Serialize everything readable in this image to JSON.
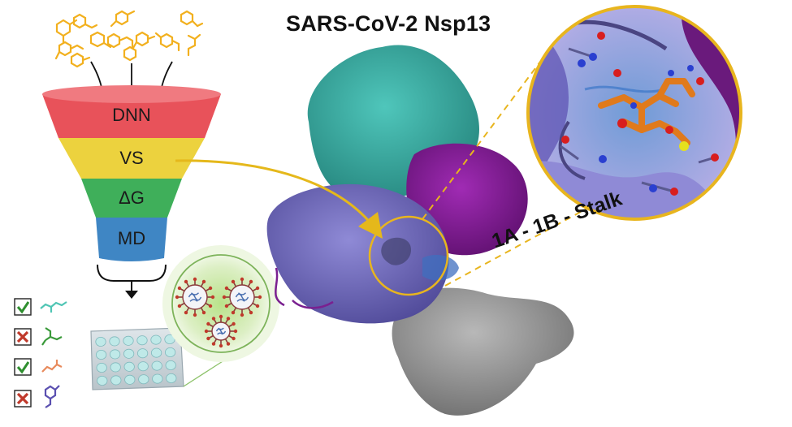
{
  "title": "SARS-CoV-2 Nsp13",
  "domain_label": "1A - 1B - Stalk",
  "funnel": {
    "stages": [
      {
        "label": "DNN",
        "color": "#e8525a"
      },
      {
        "label": "VS",
        "color": "#ecd23e"
      },
      {
        "label": "ΔG",
        "color": "#3faf5a"
      },
      {
        "label": "MD",
        "color": "#3f86c4"
      }
    ]
  },
  "results": [
    {
      "status": "pass",
      "color": "#4fc5b4"
    },
    {
      "status": "fail",
      "color": "#3a9a3a"
    },
    {
      "status": "pass",
      "color": "#e88a5c"
    },
    {
      "status": "fail",
      "color": "#5a4fb0"
    }
  ],
  "colors": {
    "ligand": "#f2b01e",
    "domain_1A": "#7a74c2",
    "domain_1B": "#8a1c9c",
    "domain_teal": "#3fb1a6",
    "stalk": "#8c8c8c",
    "highlight": "#e8b51e"
  }
}
